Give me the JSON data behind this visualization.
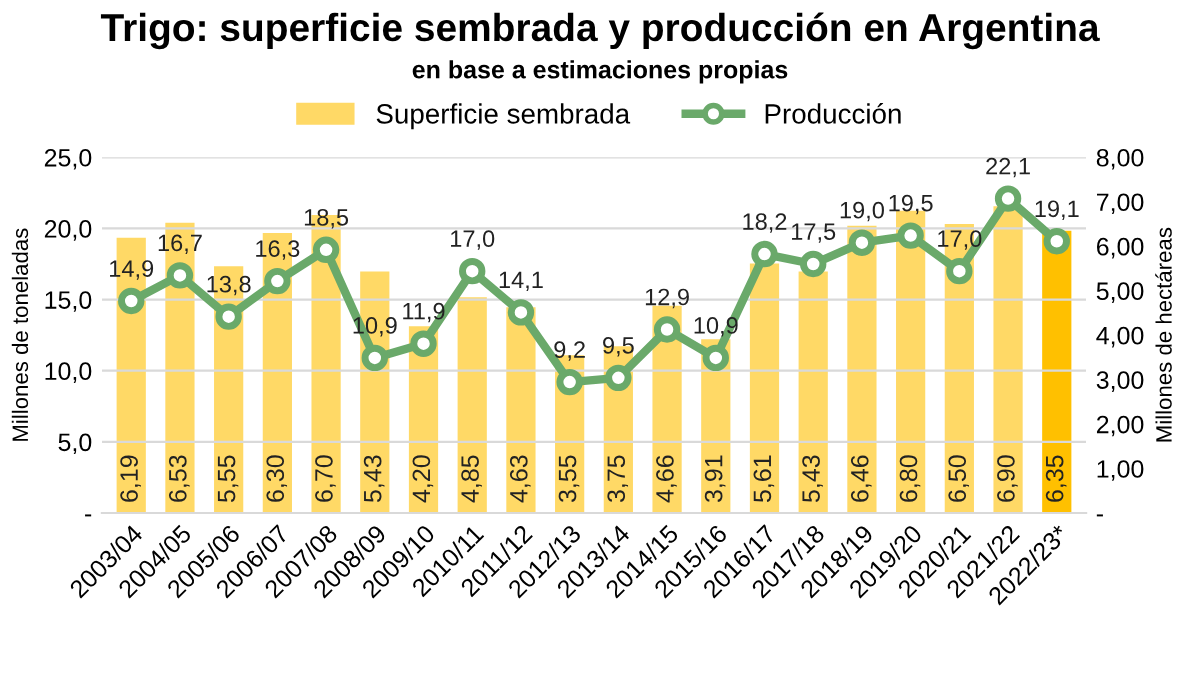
{
  "chart_data": {
    "type": "bar",
    "title": "Trigo: superficie sembrada y producción en Argentina",
    "subtitle": "en base a estimaciones propias",
    "categories": [
      "2003/04",
      "2004/05",
      "2005/06",
      "2006/07",
      "2007/08",
      "2008/09",
      "2009/10",
      "2010/11",
      "2011/12",
      "2012/13",
      "2013/14",
      "2014/15",
      "2015/16",
      "2016/17",
      "2017/18",
      "2018/19",
      "2019/20",
      "2020/21",
      "2021/22",
      "2022/23*"
    ],
    "series": [
      {
        "name": "Superficie sembrada",
        "axis": "y2",
        "color": "#ffd966",
        "colors": [
          "#ffd966",
          "#ffd966",
          "#ffd966",
          "#ffd966",
          "#ffd966",
          "#ffd966",
          "#ffd966",
          "#ffd966",
          "#ffd966",
          "#ffd966",
          "#ffd966",
          "#ffd966",
          "#ffd966",
          "#ffd966",
          "#ffd966",
          "#ffd966",
          "#ffd966",
          "#ffd966",
          "#ffd966",
          "#ffc000"
        ],
        "values": [
          6.19,
          6.53,
          5.55,
          6.3,
          6.7,
          5.43,
          4.2,
          4.85,
          4.63,
          3.55,
          3.75,
          4.66,
          3.91,
          5.61,
          5.43,
          6.46,
          6.8,
          6.5,
          6.9,
          6.35
        ],
        "value_labels": [
          "6,19",
          "6,53",
          "5,55",
          "6,30",
          "6,70",
          "5,43",
          "4,20",
          "4,85",
          "4,63",
          "3,55",
          "3,75",
          "4,66",
          "3,91",
          "5,61",
          "5,43",
          "6,46",
          "6,80",
          "6,50",
          "6,90",
          "6,35"
        ]
      },
      {
        "name": "Producción",
        "type": "line",
        "axis": "y",
        "color": "#6aa96a",
        "marker": "circle",
        "values": [
          14.9,
          16.7,
          13.8,
          16.3,
          18.5,
          10.9,
          11.9,
          17.0,
          14.1,
          9.2,
          9.5,
          12.9,
          10.9,
          18.2,
          17.5,
          19.0,
          19.5,
          17.0,
          22.1,
          19.1
        ],
        "value_labels": [
          "14,9",
          "16,7",
          "13,8",
          "16,3",
          "18,5",
          "10,9",
          "11,9",
          "17,0",
          "14,1",
          "9,2",
          "9,5",
          "12,9",
          "10,9",
          "18,2",
          "17,5",
          "19,0",
          "19,5",
          "17,0",
          "22,1",
          "19,1"
        ]
      }
    ],
    "ylabel": "Millones de toneladas",
    "y2label": "Millones de hectáreas",
    "ylim": [
      0,
      25
    ],
    "yticks": [
      {
        "value": 0,
        "label": "-"
      },
      {
        "value": 5,
        "label": "5,0"
      },
      {
        "value": 10,
        "label": "10,0"
      },
      {
        "value": 15,
        "label": "15,0"
      },
      {
        "value": 20,
        "label": "20,0"
      },
      {
        "value": 25,
        "label": "25,0"
      }
    ],
    "y2lim": [
      0,
      8
    ],
    "y2ticks": [
      {
        "value": 0,
        "label": "-"
      },
      {
        "value": 1,
        "label": "1,00"
      },
      {
        "value": 2,
        "label": "2,00"
      },
      {
        "value": 3,
        "label": "3,00"
      },
      {
        "value": 4,
        "label": "4,00"
      },
      {
        "value": 5,
        "label": "5,00"
      },
      {
        "value": 6,
        "label": "6,00"
      },
      {
        "value": 7,
        "label": "7,00"
      },
      {
        "value": 8,
        "label": "8,00"
      }
    ],
    "grid": "y",
    "legend": "top",
    "line_style": "solid"
  }
}
